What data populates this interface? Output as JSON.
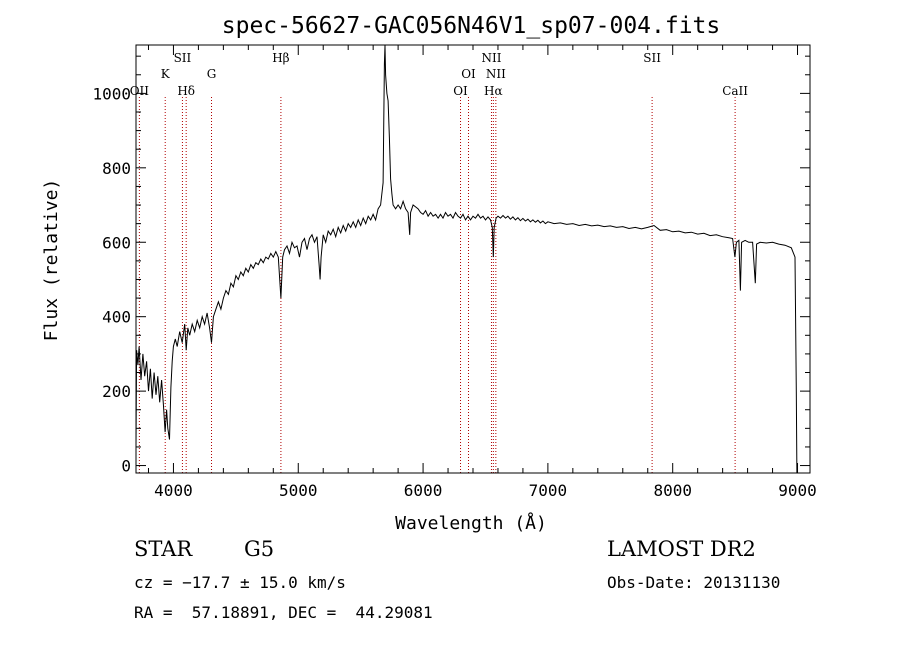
{
  "chart_data": {
    "type": "line",
    "title": "spec-56627-GAC056N46V1_sp07-004.fits",
    "xlabel": "Wavelength (Å)",
    "ylabel": "Flux (relative)",
    "xlim": [
      3700,
      9100
    ],
    "ylim": [
      -20,
      1130
    ],
    "x_ticks": [
      4000,
      5000,
      6000,
      7000,
      8000,
      9000
    ],
    "y_ticks": [
      0,
      200,
      400,
      600,
      800,
      1000
    ],
    "grid": false,
    "series": [
      {
        "points": [
          [
            3700,
            50
          ],
          [
            3705,
            310
          ],
          [
            3715,
            270
          ],
          [
            3725,
            320
          ],
          [
            3740,
            230
          ],
          [
            3755,
            300
          ],
          [
            3770,
            240
          ],
          [
            3785,
            280
          ],
          [
            3800,
            200
          ],
          [
            3815,
            260
          ],
          [
            3830,
            180
          ],
          [
            3845,
            250
          ],
          [
            3860,
            190
          ],
          [
            3875,
            240
          ],
          [
            3890,
            170
          ],
          [
            3905,
            230
          ],
          [
            3920,
            160
          ],
          [
            3933,
            90
          ],
          [
            3945,
            150
          ],
          [
            3955,
            100
          ],
          [
            3968,
            70
          ],
          [
            3980,
            210
          ],
          [
            3990,
            280
          ],
          [
            4000,
            320
          ],
          [
            4015,
            340
          ],
          [
            4030,
            320
          ],
          [
            4050,
            360
          ],
          [
            4070,
            330
          ],
          [
            4090,
            380
          ],
          [
            4102,
            310
          ],
          [
            4115,
            370
          ],
          [
            4130,
            350
          ],
          [
            4150,
            380
          ],
          [
            4170,
            360
          ],
          [
            4190,
            390
          ],
          [
            4210,
            370
          ],
          [
            4230,
            400
          ],
          [
            4250,
            380
          ],
          [
            4270,
            410
          ],
          [
            4290,
            370
          ],
          [
            4305,
            330
          ],
          [
            4320,
            400
          ],
          [
            4340,
            420
          ],
          [
            4360,
            440
          ],
          [
            4380,
            420
          ],
          [
            4400,
            450
          ],
          [
            4420,
            470
          ],
          [
            4440,
            460
          ],
          [
            4460,
            490
          ],
          [
            4480,
            480
          ],
          [
            4500,
            510
          ],
          [
            4520,
            500
          ],
          [
            4540,
            520
          ],
          [
            4560,
            510
          ],
          [
            4580,
            530
          ],
          [
            4600,
            520
          ],
          [
            4620,
            540
          ],
          [
            4640,
            530
          ],
          [
            4660,
            545
          ],
          [
            4680,
            540
          ],
          [
            4700,
            555
          ],
          [
            4720,
            545
          ],
          [
            4740,
            560
          ],
          [
            4760,
            555
          ],
          [
            4780,
            570
          ],
          [
            4800,
            560
          ],
          [
            4820,
            575
          ],
          [
            4840,
            560
          ],
          [
            4861,
            450
          ],
          [
            4875,
            560
          ],
          [
            4890,
            580
          ],
          [
            4910,
            590
          ],
          [
            4930,
            570
          ],
          [
            4950,
            600
          ],
          [
            4970,
            585
          ],
          [
            4990,
            590
          ],
          [
            5010,
            560
          ],
          [
            5030,
            600
          ],
          [
            5050,
            610
          ],
          [
            5070,
            580
          ],
          [
            5090,
            610
          ],
          [
            5110,
            620
          ],
          [
            5130,
            600
          ],
          [
            5150,
            615
          ],
          [
            5167,
            540
          ],
          [
            5175,
            500
          ],
          [
            5183,
            560
          ],
          [
            5200,
            620
          ],
          [
            5220,
            600
          ],
          [
            5240,
            630
          ],
          [
            5260,
            620
          ],
          [
            5280,
            635
          ],
          [
            5300,
            615
          ],
          [
            5320,
            640
          ],
          [
            5340,
            625
          ],
          [
            5360,
            645
          ],
          [
            5380,
            630
          ],
          [
            5400,
            650
          ],
          [
            5420,
            640
          ],
          [
            5440,
            655
          ],
          [
            5460,
            640
          ],
          [
            5480,
            660
          ],
          [
            5500,
            645
          ],
          [
            5520,
            665
          ],
          [
            5540,
            650
          ],
          [
            5560,
            670
          ],
          [
            5580,
            660
          ],
          [
            5600,
            675
          ],
          [
            5620,
            660
          ],
          [
            5640,
            690
          ],
          [
            5660,
            700
          ],
          [
            5680,
            760
          ],
          [
            5690,
            1080
          ],
          [
            5695,
            1130
          ],
          [
            5700,
            1050
          ],
          [
            5710,
            1000
          ],
          [
            5720,
            980
          ],
          [
            5730,
            880
          ],
          [
            5740,
            770
          ],
          [
            5750,
            730
          ],
          [
            5760,
            700
          ],
          [
            5780,
            690
          ],
          [
            5800,
            700
          ],
          [
            5820,
            690
          ],
          [
            5840,
            710
          ],
          [
            5860,
            690
          ],
          [
            5880,
            680
          ],
          [
            5893,
            620
          ],
          [
            5900,
            680
          ],
          [
            5920,
            700
          ],
          [
            5940,
            695
          ],
          [
            5960,
            690
          ],
          [
            5980,
            680
          ],
          [
            6000,
            675
          ],
          [
            6020,
            685
          ],
          [
            6040,
            670
          ],
          [
            6060,
            680
          ],
          [
            6080,
            670
          ],
          [
            6100,
            675
          ],
          [
            6120,
            665
          ],
          [
            6140,
            675
          ],
          [
            6160,
            665
          ],
          [
            6180,
            680
          ],
          [
            6200,
            670
          ],
          [
            6220,
            675
          ],
          [
            6240,
            665
          ],
          [
            6260,
            680
          ],
          [
            6280,
            670
          ],
          [
            6300,
            665
          ],
          [
            6320,
            675
          ],
          [
            6340,
            660
          ],
          [
            6360,
            670
          ],
          [
            6380,
            660
          ],
          [
            6400,
            670
          ],
          [
            6420,
            665
          ],
          [
            6440,
            675
          ],
          [
            6460,
            665
          ],
          [
            6480,
            670
          ],
          [
            6500,
            660
          ],
          [
            6520,
            668
          ],
          [
            6540,
            660
          ],
          [
            6555,
            640
          ],
          [
            6563,
            560
          ],
          [
            6570,
            640
          ],
          [
            6585,
            665
          ],
          [
            6600,
            670
          ],
          [
            6620,
            665
          ],
          [
            6640,
            672
          ],
          [
            6660,
            665
          ],
          [
            6680,
            670
          ],
          [
            6700,
            662
          ],
          [
            6720,
            668
          ],
          [
            6740,
            660
          ],
          [
            6760,
            666
          ],
          [
            6780,
            658
          ],
          [
            6800,
            664
          ],
          [
            6820,
            657
          ],
          [
            6840,
            662
          ],
          [
            6860,
            655
          ],
          [
            6880,
            660
          ],
          [
            6900,
            654
          ],
          [
            6920,
            659
          ],
          [
            6940,
            652
          ],
          [
            6960,
            657
          ],
          [
            6980,
            650
          ],
          [
            7000,
            655
          ],
          [
            7050,
            650
          ],
          [
            7100,
            652
          ],
          [
            7150,
            648
          ],
          [
            7200,
            650
          ],
          [
            7250,
            645
          ],
          [
            7300,
            648
          ],
          [
            7350,
            644
          ],
          [
            7400,
            646
          ],
          [
            7450,
            642
          ],
          [
            7500,
            644
          ],
          [
            7550,
            640
          ],
          [
            7600,
            642
          ],
          [
            7650,
            637
          ],
          [
            7700,
            640
          ],
          [
            7750,
            636
          ],
          [
            7800,
            640
          ],
          [
            7850,
            645
          ],
          [
            7900,
            632
          ],
          [
            7950,
            634
          ],
          [
            8000,
            628
          ],
          [
            8050,
            630
          ],
          [
            8100,
            625
          ],
          [
            8150,
            627
          ],
          [
            8200,
            622
          ],
          [
            8250,
            624
          ],
          [
            8300,
            618
          ],
          [
            8350,
            620
          ],
          [
            8400,
            615
          ],
          [
            8450,
            612
          ],
          [
            8480,
            610
          ],
          [
            8498,
            560
          ],
          [
            8510,
            600
          ],
          [
            8530,
            605
          ],
          [
            8542,
            470
          ],
          [
            8552,
            600
          ],
          [
            8580,
            605
          ],
          [
            8610,
            600
          ],
          [
            8640,
            600
          ],
          [
            8662,
            490
          ],
          [
            8672,
            595
          ],
          [
            8700,
            600
          ],
          [
            8750,
            598
          ],
          [
            8800,
            600
          ],
          [
            8850,
            595
          ],
          [
            8900,
            592
          ],
          [
            8950,
            585
          ],
          [
            8980,
            560
          ],
          [
            8990,
            200
          ],
          [
            8995,
            -20
          ]
        ]
      }
    ],
    "line_markers": [
      {
        "label": "OII",
        "x": 3727,
        "level": 3
      },
      {
        "label": "K",
        "x": 3934,
        "level": 2
      },
      {
        "label": "SII",
        "x": 4072,
        "level": 1
      },
      {
        "label": "Hδ",
        "x": 4102,
        "level": 3
      },
      {
        "label": "G",
        "x": 4305,
        "level": 2
      },
      {
        "label": "Hβ",
        "x": 4861,
        "level": 1
      },
      {
        "label": "OI",
        "x": 6300,
        "level": 3
      },
      {
        "label": "OI",
        "x": 6364,
        "level": 2
      },
      {
        "label": "NII",
        "x": 6548,
        "level": 1
      },
      {
        "label": "Hα",
        "x": 6563,
        "level": 3
      },
      {
        "label": "NII",
        "x": 6583,
        "level": 2
      },
      {
        "label": "SII",
        "x": 7835,
        "level": 1
      },
      {
        "label": "CaII",
        "x": 8500,
        "level": 3
      }
    ]
  },
  "footer": {
    "object_type": "STAR",
    "subclass": "G5",
    "survey": "LAMOST DR2",
    "cz": "cz = −17.7 ± 15.0 km/s",
    "obs_date": "Obs-Date: 20131130",
    "coords": "RA =  57.18891, DEC =  44.29081"
  },
  "colors": {
    "spectrum": "#000000",
    "marker_line": "#b00000",
    "axis": "#000000"
  }
}
